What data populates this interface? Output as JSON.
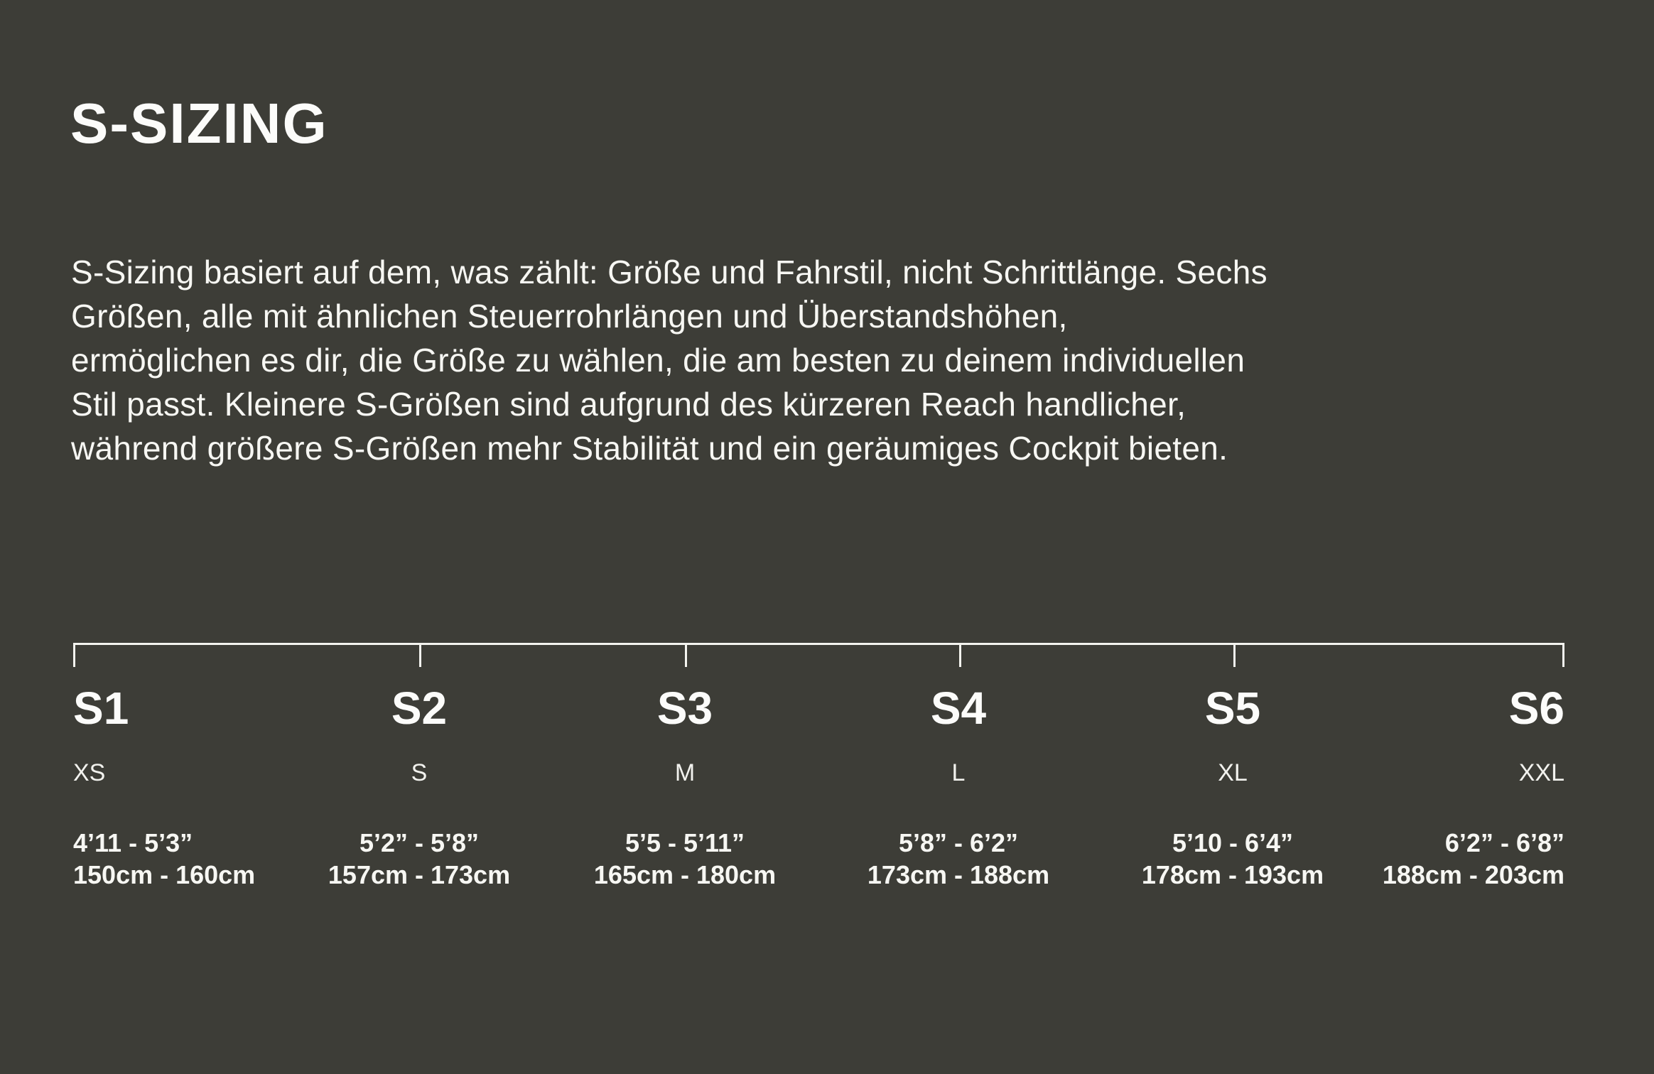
{
  "theme": {
    "background_color": "#3D3D37",
    "text_color": "#F9F9F6",
    "scale_line_color": "#F4F4EF"
  },
  "header": {
    "title": "S-SIZING"
  },
  "intro": {
    "lines": [
      "S-Sizing basiert auf dem, was zählt: Größe und Fahrstil, nicht Schrittlänge. Sechs",
      "Größen, alle mit ähnlichen Steuerrohrlängen und Überstandshöhen,",
      "ermöglichen es dir, die Größe zu wählen, die am besten zu deinem individuellen",
      "Stil passt. Kleinere S-Größen sind aufgrund des kürzeren Reach handlicher,",
      "während größere S-Größen mehr Stabilität und ein geräumiges Cockpit bieten."
    ]
  },
  "scale": {
    "tick_positions_percent": [
      0,
      23.2,
      41.0,
      59.4,
      77.8,
      100
    ]
  },
  "sizes": [
    {
      "code": "S1",
      "letter": "XS",
      "imperial": "4’11 - 5’3”",
      "metric": "150cm - 160cm"
    },
    {
      "code": "S2",
      "letter": "S",
      "imperial": "5’2” - 5’8”",
      "metric": "157cm - 173cm"
    },
    {
      "code": "S3",
      "letter": "M",
      "imperial": "5’5 - 5’11”",
      "metric": "165cm - 180cm"
    },
    {
      "code": "S4",
      "letter": "L",
      "imperial": "5’8” - 6’2”",
      "metric": "173cm - 188cm"
    },
    {
      "code": "S5",
      "letter": "XL",
      "imperial": "5’10 - 6’4”",
      "metric": "178cm - 193cm"
    },
    {
      "code": "S6",
      "letter": "XXL",
      "imperial": "6’2” - 6’8”",
      "metric": "188cm - 203cm"
    }
  ]
}
